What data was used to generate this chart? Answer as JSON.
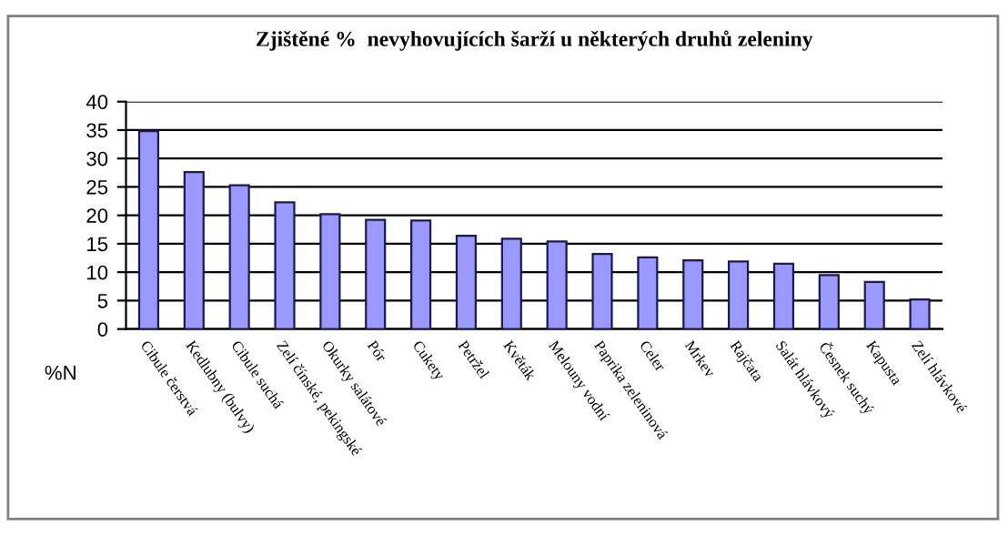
{
  "chart_data": {
    "type": "bar",
    "title": "Zjištěné %  nevyhovujících šarží u některých druhů zeleniny",
    "ylabel": "%N",
    "categories": [
      "Cibule čerstvá",
      "Kedlubny (bulvy)",
      "Cibule suchá",
      "Zelí čínské, pekingské",
      "Okurky salátové",
      "Pór",
      "Cukety",
      "Petržel",
      "Květák",
      "Melouny vodní",
      "Paprika zeleninová",
      "Celer",
      "Mrkev",
      "Rajčata",
      "Salát hlávkový",
      "Česnek suchý",
      "Kapusta",
      "Zelí hlávkové"
    ],
    "values": [
      34.8,
      27.6,
      25.3,
      22.3,
      20.2,
      19.2,
      19.1,
      16.4,
      15.9,
      15.4,
      13.2,
      12.6,
      12.1,
      11.9,
      11.5,
      9.5,
      8.3,
      5.2
    ],
    "color": "#9999ff",
    "ylim": [
      0,
      40
    ],
    "yticks": [
      0,
      5,
      10,
      15,
      20,
      25,
      30,
      35,
      40
    ],
    "grid": "y"
  }
}
